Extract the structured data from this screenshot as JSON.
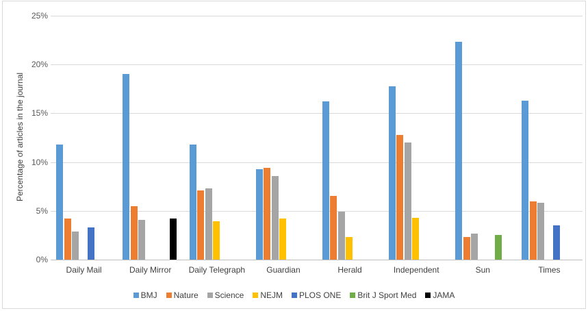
{
  "chart_data": {
    "type": "bar",
    "title": "",
    "xlabel": "",
    "ylabel": "Percentage of articles in the journal",
    "ylim": [
      0,
      25
    ],
    "yticks": [
      "0%",
      "5%",
      "10%",
      "15%",
      "20%",
      "25%"
    ],
    "grid": true,
    "legend_position": "bottom",
    "categories": [
      "Daily Mail",
      "Daily Mirror",
      "Daily Telegraph",
      "Guardian",
      "Herald",
      "Independent",
      "Sun",
      "Times"
    ],
    "series": [
      {
        "name": "BMJ",
        "color": "#5B9BD5",
        "values": [
          11.8,
          19.0,
          11.8,
          9.3,
          16.2,
          17.8,
          22.3,
          16.3
        ]
      },
      {
        "name": "Nature",
        "color": "#ED7D31",
        "values": [
          4.2,
          5.5,
          7.1,
          9.4,
          6.5,
          12.8,
          2.3,
          6.0
        ]
      },
      {
        "name": "Science",
        "color": "#A5A5A5",
        "values": [
          2.9,
          4.1,
          7.3,
          8.6,
          4.9,
          12.0,
          2.7,
          5.8
        ]
      },
      {
        "name": "NEJM",
        "color": "#FFC000",
        "values": [
          0,
          0,
          3.9,
          4.2,
          2.3,
          4.3,
          0,
          0
        ]
      },
      {
        "name": "PLOS ONE",
        "color": "#4472C4",
        "values": [
          3.3,
          0,
          0,
          0,
          0,
          0,
          0,
          3.5
        ]
      },
      {
        "name": "Brit J Sport Med",
        "color": "#70AD47",
        "values": [
          0,
          0,
          0,
          0,
          0,
          0,
          2.5,
          0
        ]
      },
      {
        "name": "JAMA",
        "color": "#000000",
        "values": [
          0,
          4.2,
          0,
          0,
          0,
          0,
          0,
          0
        ]
      }
    ]
  }
}
